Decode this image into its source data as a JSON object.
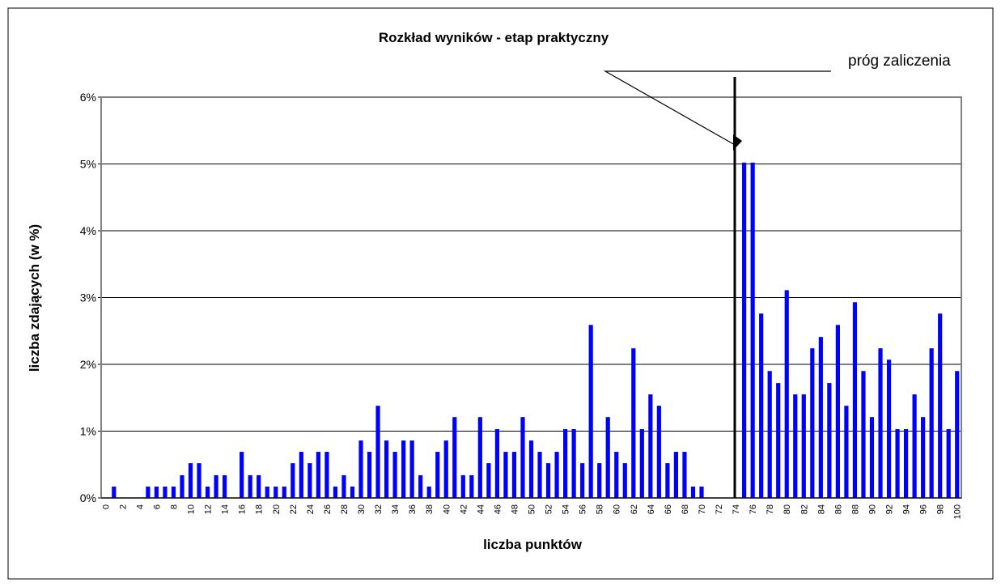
{
  "chart_data": {
    "type": "bar",
    "title": "Rozkład wyników - etap praktyczny",
    "x_label": "liczba punktów",
    "y_label": "liczba zdających (w %)",
    "annotation": "próg zaliczenia",
    "color": "#0000ff",
    "grid": true,
    "categories": [
      "0",
      null,
      "2",
      null,
      "4",
      null,
      "6",
      null,
      "8",
      null,
      "10",
      null,
      "12",
      null,
      "14",
      null,
      "16",
      null,
      "18",
      null,
      "20",
      null,
      "22",
      null,
      "24",
      null,
      "26",
      null,
      "28",
      null,
      "30",
      null,
      "32",
      null,
      "34",
      null,
      "36",
      null,
      "38",
      null,
      "40",
      null,
      "42",
      null,
      "44",
      null,
      "46",
      null,
      "48",
      null,
      "50",
      null,
      "52",
      null,
      "54",
      null,
      "56",
      null,
      "58",
      null,
      "60",
      null,
      "62",
      null,
      "64",
      null,
      "66",
      null,
      "68",
      null,
      "70",
      null,
      "72",
      null,
      "74",
      null,
      "76",
      null,
      "78",
      null,
      "80",
      null,
      "82",
      null,
      "84",
      null,
      "86",
      null,
      "88",
      null,
      "90",
      null,
      "92",
      null,
      "94",
      null,
      "96",
      null,
      "98",
      null,
      "100"
    ],
    "values": [
      0,
      0.17,
      0,
      0,
      0,
      0.17,
      0.17,
      0.17,
      0.17,
      0.34,
      0.52,
      0.52,
      0.17,
      0.34,
      0.34,
      0,
      0.69,
      0.34,
      0.34,
      0.17,
      0.17,
      0.17,
      0.52,
      0.69,
      0.52,
      0.69,
      0.69,
      0.17,
      0.34,
      0.17,
      0.86,
      0.69,
      1.38,
      0.86,
      0.69,
      0.86,
      0.86,
      0.34,
      0.17,
      0.69,
      0.86,
      1.21,
      0.34,
      0.34,
      1.21,
      0.52,
      1.03,
      0.69,
      0.69,
      1.21,
      0.86,
      0.69,
      0.52,
      0.69,
      1.03,
      1.03,
      0.52,
      2.59,
      0.52,
      1.21,
      0.69,
      0.52,
      2.24,
      1.03,
      1.55,
      1.38,
      0.52,
      0.69,
      0.69,
      0.17,
      0.17,
      0,
      0,
      0,
      0,
      5.02,
      5.02,
      2.76,
      1.9,
      1.72,
      3.11,
      1.55,
      1.55,
      2.24,
      2.41,
      1.72,
      2.59,
      1.38,
      2.93,
      1.9,
      1.21,
      2.24,
      2.07,
      1.03,
      1.03,
      1.55,
      1.21,
      2.24,
      2.76,
      1.03,
      1.9
    ],
    "ylim": [
      0,
      6
    ],
    "yticks": [
      {
        "value": 0,
        "label": "0%"
      },
      {
        "value": 1,
        "label": "1%"
      },
      {
        "value": 2,
        "label": "2%"
      },
      {
        "value": 3,
        "label": "3%"
      },
      {
        "value": 4,
        "label": "4%"
      },
      {
        "value": 5,
        "label": "5%"
      },
      {
        "value": 6,
        "label": "6%"
      }
    ]
  }
}
